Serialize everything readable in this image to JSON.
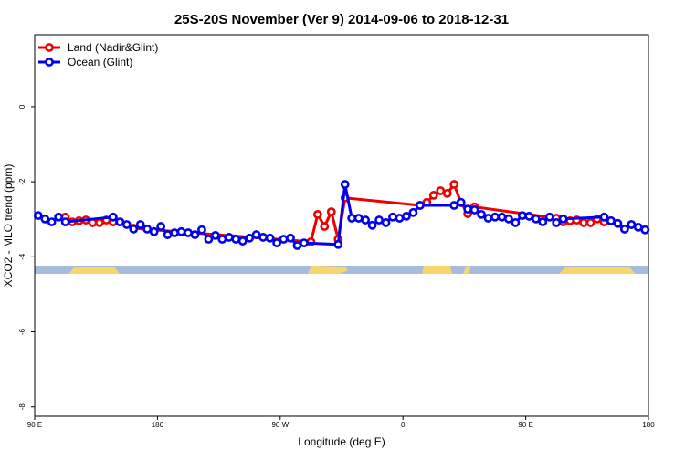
{
  "chart_data": {
    "type": "line",
    "title": "25S-20S November (Ver 9)   2014-09-06 to 2018-12-31",
    "x_label": "Longitude (deg E)",
    "y_label": "XCO2 - MLO trend (ppm)",
    "xlim": [
      90,
      540
    ],
    "xticks": [
      {
        "value": 90,
        "label": "90 E"
      },
      180,
      {
        "value": 270,
        "label": "90 W"
      },
      {
        "value": 360,
        "label": "0"
      },
      {
        "value": 450,
        "label": "90 E"
      },
      {
        "value": 540,
        "label": "180"
      }
    ],
    "ylim": [
      -8.25,
      1.92
    ],
    "yticks": [
      0,
      -2,
      -4,
      -6,
      -8
    ],
    "legend": "top-left",
    "series": [
      {
        "name": "Land (Nadir&Glint)",
        "color": "#ee0000",
        "x": [
          112.5,
          117.5,
          122.5,
          127.5,
          132.5,
          137.5,
          142.5,
          147.5,
          152.5,
          162.5,
          292.5,
          297.5,
          302.5,
          307.5,
          312.5,
          317.5,
          372.5,
          377.5,
          382.5,
          387.5,
          392.5,
          397.5,
          402.5,
          407.5,
          412.5,
          472.5,
          477.5,
          482.5,
          487.5,
          492.5,
          497.5,
          502.5,
          507.5,
          512.5,
          522.5,
          527.5
        ],
        "values": [
          -2.94,
          -3.07,
          -3.04,
          -3.02,
          -3.09,
          -3.09,
          -3.02,
          -3.07,
          -3.07,
          -3.24,
          -3.6,
          -2.87,
          -3.19,
          -2.8,
          -3.53,
          -2.43,
          -2.63,
          -2.55,
          -2.36,
          -2.24,
          -2.31,
          -2.07,
          -2.55,
          -2.85,
          -2.67,
          -2.97,
          -3.07,
          -3.04,
          -3.02,
          -3.09,
          -3.09,
          -2.99,
          -3.07,
          -3.04,
          -3.26,
          -3.14
        ]
      },
      {
        "name": "Ocean (Glint)",
        "color": "#0000ee",
        "x": [
          92.5,
          97.5,
          102.5,
          107.5,
          112.5,
          147.5,
          152.5,
          157.5,
          162.5,
          167.5,
          172.5,
          177.5,
          182.5,
          187.5,
          192.5,
          197.5,
          202.5,
          207.5,
          212.5,
          217.5,
          222.5,
          227.5,
          232.5,
          237.5,
          242.5,
          247.5,
          252.5,
          257.5,
          262.5,
          267.5,
          272.5,
          277.5,
          282.5,
          287.5,
          312.5,
          317.5,
          322.5,
          327.5,
          332.5,
          337.5,
          342.5,
          347.5,
          352.5,
          357.5,
          362.5,
          367.5,
          372.5,
          397.5,
          402.5,
          407.5,
          412.5,
          417.5,
          422.5,
          427.5,
          432.5,
          437.5,
          442.5,
          447.5,
          452.5,
          457.5,
          462.5,
          467.5,
          472.5,
          477.5,
          507.5,
          512.5,
          517.5,
          522.5,
          527.5,
          532.5,
          537.5
        ],
        "values": [
          -2.9,
          -2.99,
          -3.07,
          -2.94,
          -3.07,
          -2.94,
          -3.07,
          -3.14,
          -3.26,
          -3.14,
          -3.26,
          -3.33,
          -3.19,
          -3.41,
          -3.36,
          -3.33,
          -3.36,
          -3.41,
          -3.28,
          -3.53,
          -3.43,
          -3.53,
          -3.48,
          -3.53,
          -3.58,
          -3.5,
          -3.41,
          -3.48,
          -3.5,
          -3.63,
          -3.53,
          -3.5,
          -3.7,
          -3.63,
          -3.67,
          -2.07,
          -2.97,
          -2.97,
          -3.02,
          -3.16,
          -3.02,
          -3.09,
          -2.94,
          -2.97,
          -2.92,
          -2.82,
          -2.63,
          -2.63,
          -2.55,
          -2.73,
          -2.75,
          -2.87,
          -2.97,
          -2.94,
          -2.94,
          -2.99,
          -3.09,
          -2.9,
          -2.92,
          -2.99,
          -3.07,
          -2.94,
          -3.09,
          -2.99,
          -2.94,
          -3.04,
          -3.11,
          -3.26,
          -3.14,
          -3.21,
          -3.28
        ]
      }
    ]
  }
}
